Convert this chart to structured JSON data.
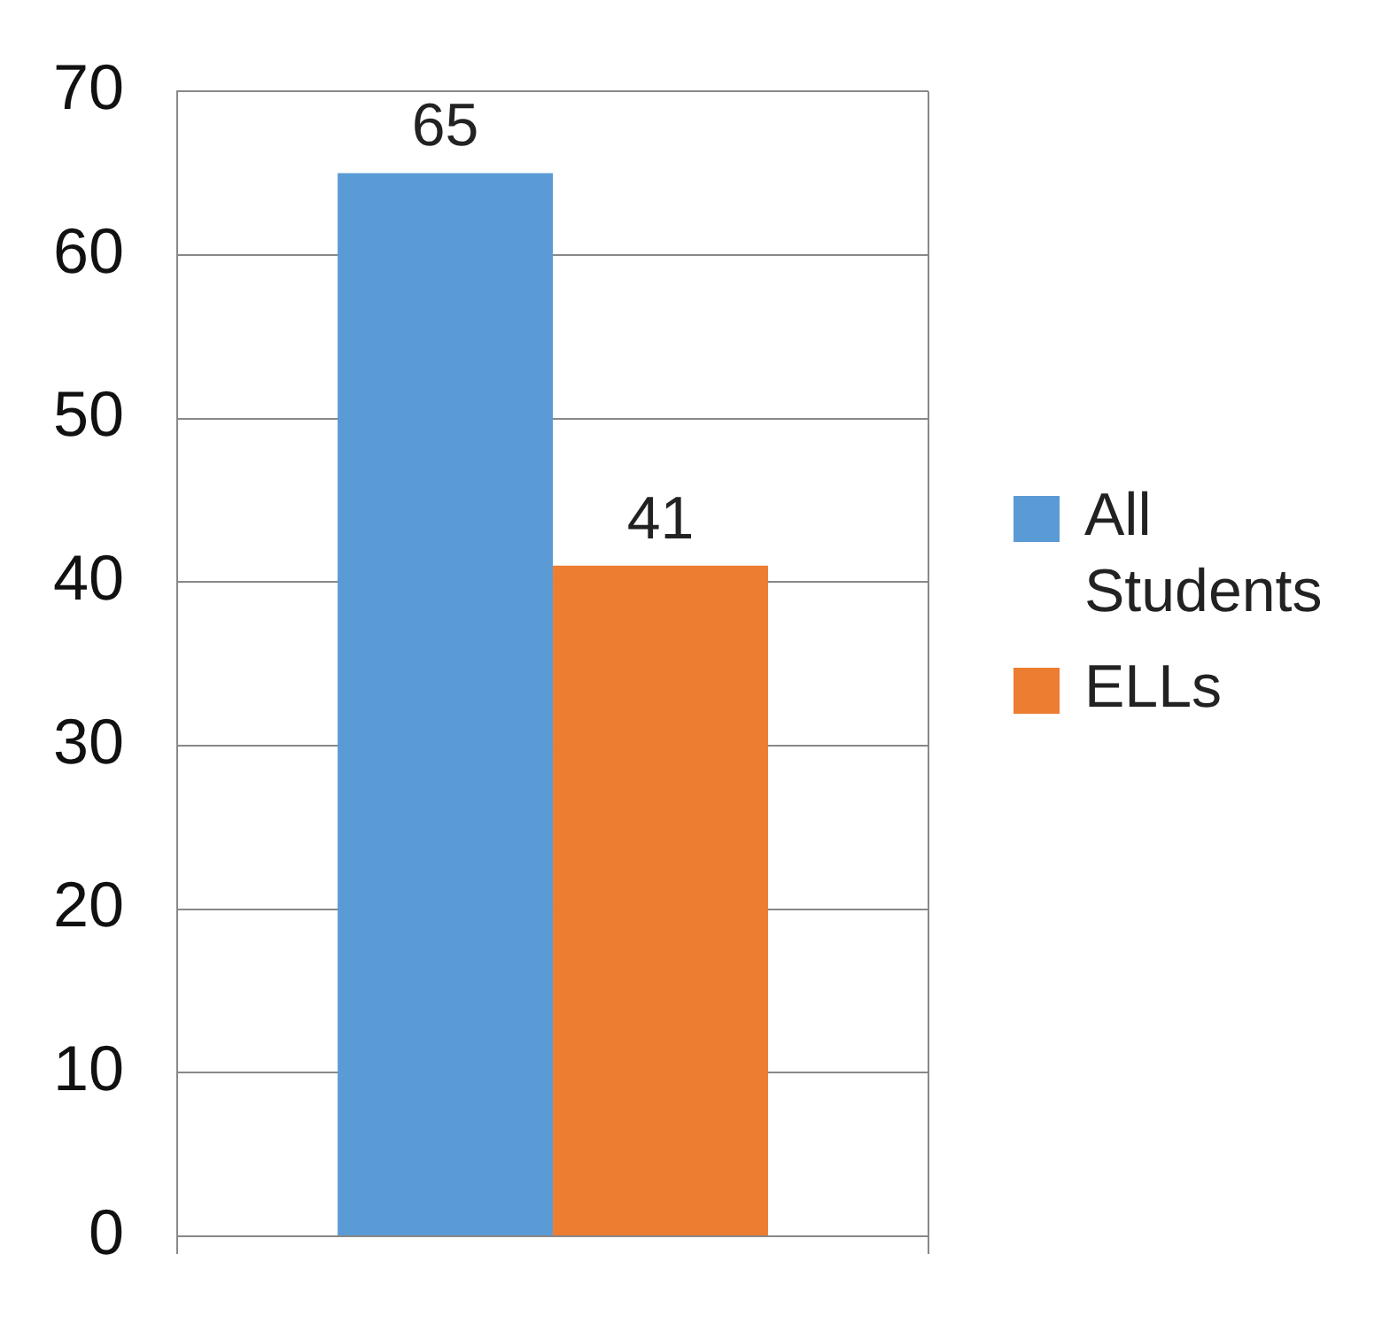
{
  "chart_data": {
    "type": "bar",
    "categories": [
      null
    ],
    "series": [
      {
        "name": "All Students",
        "color": "#5b9bd5",
        "values": [
          65
        ]
      },
      {
        "name": "ELLs",
        "color": "#ed7d31",
        "values": [
          41
        ]
      }
    ],
    "ylim": [
      0,
      70
    ],
    "yticks": [
      0,
      10,
      20,
      30,
      40,
      50,
      60,
      70
    ],
    "grid": "y",
    "legend": "right",
    "data_labels": true
  }
}
